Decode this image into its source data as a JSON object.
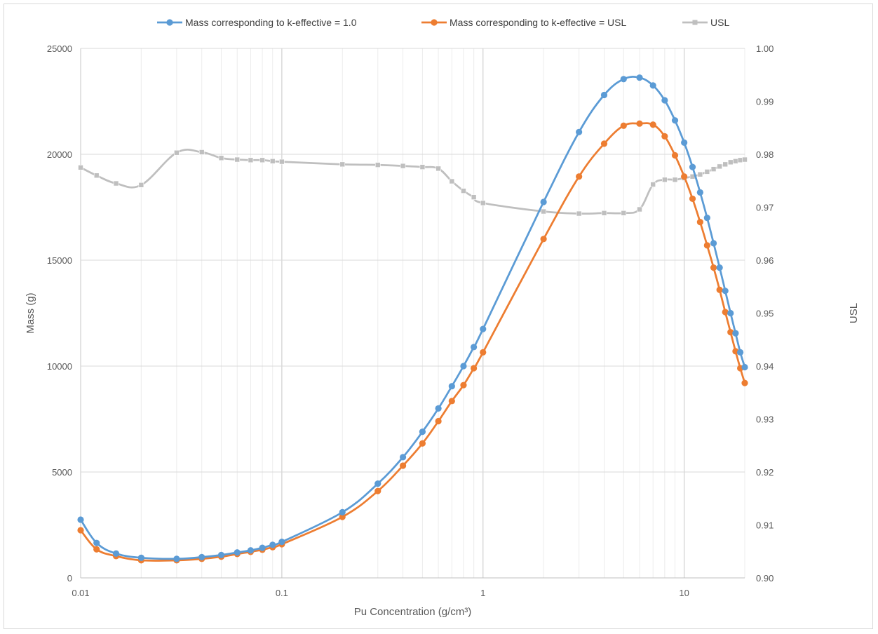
{
  "chart_data": {
    "type": "scatter",
    "xlabel": "Pu Concentration (g/cm³)",
    "ylabel": "Mass (g)",
    "y2label": "USL",
    "x_scale": "log",
    "xlim": [
      0.01,
      20
    ],
    "ylim": [
      0,
      25000
    ],
    "y2lim": [
      0.9,
      1.0
    ],
    "x_ticks": [
      "0.01",
      "0.1",
      "1",
      "10"
    ],
    "y_ticks": [
      "0",
      "5000",
      "10000",
      "15000",
      "20000",
      "25000"
    ],
    "y2_ticks": [
      "0.90",
      "0.91",
      "0.92",
      "0.93",
      "0.94",
      "0.95",
      "0.96",
      "0.97",
      "0.98",
      "0.99",
      "1.00"
    ],
    "grid": true,
    "legend_position": "top",
    "series": [
      {
        "name": "Mass corresponding to k-effective = 1.0",
        "color": "#5B9BD5",
        "marker": "circle",
        "axis": "left",
        "x": [
          0.01,
          0.012,
          0.015,
          0.02,
          0.03,
          0.04,
          0.05,
          0.06,
          0.07,
          0.08,
          0.09,
          0.1,
          0.2,
          0.3,
          0.4,
          0.5,
          0.6,
          0.7,
          0.8,
          0.9,
          1,
          2,
          3,
          4,
          5,
          6,
          7,
          8,
          9,
          10,
          11,
          12,
          13,
          14,
          15,
          16,
          17,
          18,
          19,
          20
        ],
        "y": [
          2750,
          1650,
          1150,
          950,
          900,
          980,
          1080,
          1200,
          1300,
          1420,
          1560,
          1700,
          3100,
          4450,
          5700,
          6900,
          8000,
          9050,
          10000,
          10900,
          11750,
          17750,
          21050,
          22800,
          23550,
          23620,
          23250,
          22550,
          21600,
          20550,
          19400,
          18200,
          17000,
          15800,
          14650,
          13550,
          12500,
          11550,
          10650,
          9950
        ]
      },
      {
        "name": "Mass corresponding to k-effective = USL",
        "color": "#ED7D31",
        "marker": "circle",
        "axis": "left",
        "x": [
          0.01,
          0.012,
          0.015,
          0.02,
          0.03,
          0.04,
          0.05,
          0.06,
          0.07,
          0.08,
          0.09,
          0.1,
          0.2,
          0.3,
          0.4,
          0.5,
          0.6,
          0.7,
          0.8,
          0.9,
          1,
          2,
          3,
          4,
          5,
          6,
          7,
          8,
          9,
          10,
          11,
          12,
          13,
          14,
          15,
          16,
          17,
          18,
          19,
          20
        ],
        "y": [
          2250,
          1350,
          1030,
          830,
          830,
          900,
          1000,
          1130,
          1230,
          1330,
          1450,
          1590,
          2880,
          4100,
          5300,
          6350,
          7400,
          8350,
          9100,
          9900,
          10650,
          16000,
          18950,
          20500,
          21350,
          21450,
          21400,
          20850,
          19950,
          18950,
          17900,
          16800,
          15700,
          14650,
          13600,
          12550,
          11600,
          10700,
          9900,
          9200
        ]
      },
      {
        "name": "USL",
        "color": "#BFBFBF",
        "marker": "square",
        "axis": "right",
        "x": [
          0.01,
          0.012,
          0.015,
          0.02,
          0.03,
          0.04,
          0.05,
          0.06,
          0.07,
          0.08,
          0.09,
          0.1,
          0.2,
          0.3,
          0.4,
          0.5,
          0.6,
          0.7,
          0.8,
          0.9,
          1,
          2,
          3,
          4,
          5,
          6,
          7,
          8,
          9,
          10,
          11,
          12,
          13,
          14,
          15,
          16,
          17,
          18,
          19,
          20
        ],
        "y": [
          0.9775,
          0.976,
          0.9745,
          0.9742,
          0.9803,
          0.9804,
          0.9793,
          0.979,
          0.9789,
          0.9789,
          0.9787,
          0.9786,
          0.9781,
          0.978,
          0.9778,
          0.9776,
          0.9773,
          0.9749,
          0.9731,
          0.9719,
          0.9708,
          0.9692,
          0.9688,
          0.9689,
          0.9689,
          0.9696,
          0.9743,
          0.9752,
          0.9752,
          0.9755,
          0.9758,
          0.9762,
          0.9767,
          0.9772,
          0.9777,
          0.9781,
          0.9785,
          0.9787,
          0.9789,
          0.979
        ]
      }
    ]
  }
}
